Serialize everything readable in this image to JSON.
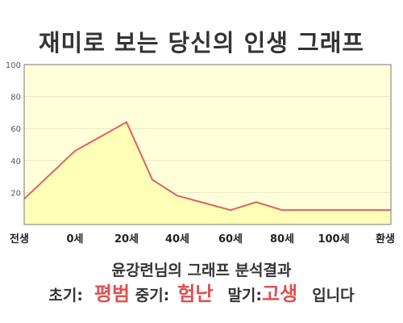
{
  "title": "재미로 보는 당신의 인생 그래프",
  "subtitle": "윤강련님의 그래프 분석결과",
  "result": {
    "early_label": "초기:",
    "early_value": "평범",
    "mid_label": "중기:",
    "mid_value": "험난",
    "late_label": "말기:",
    "late_value": "고생",
    "ending": "입니다"
  },
  "colors": {
    "plot_background": "#ffffd9",
    "line": "#e06060",
    "fill": "#ffffb8",
    "accent_text": "#e05050"
  },
  "chart_data": {
    "type": "area",
    "title": "",
    "xlabel": "",
    "ylabel": "",
    "ylim": [
      0,
      100
    ],
    "grid": true,
    "y_ticks": [
      "100",
      "80",
      "60",
      "40",
      "20"
    ],
    "x_tick_labels": [
      "전생",
      "0세",
      "20세",
      "40세",
      "60세",
      "80세",
      "100세",
      "환생"
    ],
    "series": [
      {
        "values": [
          {
            "x": "전생",
            "y": 16
          },
          {
            "x": "0세",
            "y": 46
          },
          {
            "x": "20세",
            "y": 64
          },
          {
            "x": "30세",
            "y": 28
          },
          {
            "x": "40세",
            "y": 18
          },
          {
            "x": "60세",
            "y": 9
          },
          {
            "x": "70세",
            "y": 14
          },
          {
            "x": "80세",
            "y": 9
          },
          {
            "x": "100세",
            "y": 9
          },
          {
            "x": "환생",
            "y": 9
          }
        ]
      }
    ]
  }
}
